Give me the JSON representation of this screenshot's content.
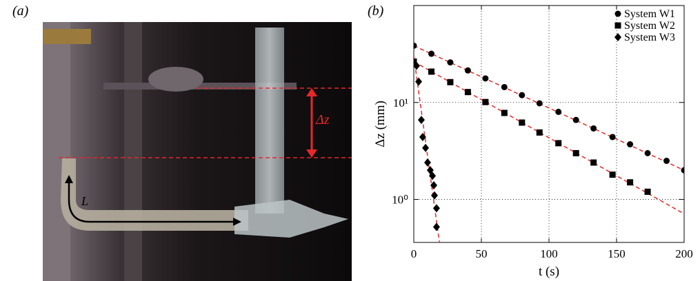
{
  "panel_labels": [
    "(a)",
    "(b)"
  ],
  "photo": {
    "annotations": [
      "Δz",
      "L"
    ]
  },
  "chart_data": {
    "type": "scatter",
    "ylabel": "Δz (mm)",
    "xlabel": "t (s)",
    "xlim": [
      0,
      200
    ],
    "xticks": [
      0,
      50,
      100,
      150,
      200
    ],
    "ylim": [
      0.36,
      100
    ],
    "yscale": "log",
    "yticks": [
      {
        "value": 1,
        "label": "10⁰"
      },
      {
        "value": 10,
        "label": "10¹"
      }
    ],
    "grid": true,
    "legend": "upper right",
    "series": [
      {
        "name": "System W1",
        "marker": "circle",
        "color": "#000000",
        "x": [
          0,
          13,
          27,
          40,
          53,
          67,
          80,
          93,
          107,
          120,
          133,
          147,
          160,
          173,
          187,
          200
        ],
        "values": [
          38.5,
          31.8,
          25.9,
          21.4,
          17.7,
          14.4,
          11.9,
          9.8,
          8.0,
          6.6,
          5.4,
          4.4,
          3.7,
          3.0,
          2.5,
          2.0
        ]
      },
      {
        "name": "System W2",
        "marker": "square",
        "color": "#000000",
        "x": [
          0,
          13,
          27,
          40,
          53,
          67,
          80,
          93,
          107,
          120,
          133,
          147,
          160,
          173
        ],
        "values": [
          26.4,
          20.8,
          16.2,
          12.8,
          10.1,
          7.8,
          6.2,
          4.9,
          3.8,
          3.0,
          2.4,
          1.8,
          1.5,
          1.2
        ]
      },
      {
        "name": "System W3",
        "marker": "diamond",
        "color": "#000000",
        "x": [
          2.0,
          3.6,
          5.6,
          6.6,
          8.7,
          10.2,
          12.2,
          13.8,
          14.8,
          15.3,
          16.8,
          16.8
        ],
        "values": [
          23.9,
          16.4,
          6.6,
          4.4,
          3.4,
          2.4,
          2.0,
          1.75,
          1.4,
          1.1,
          0.81,
          0.52
        ]
      }
    ],
    "fits": [
      {
        "color": "#e8272b",
        "x": [
          0,
          200
        ],
        "values": [
          38.5,
          2.0
        ]
      },
      {
        "color": "#e8272b",
        "x": [
          0,
          200
        ],
        "values": [
          26.4,
          0.71
        ]
      },
      {
        "color": "#e8272b",
        "x": [
          0,
          19
        ],
        "values": [
          30,
          0.36
        ]
      }
    ]
  }
}
